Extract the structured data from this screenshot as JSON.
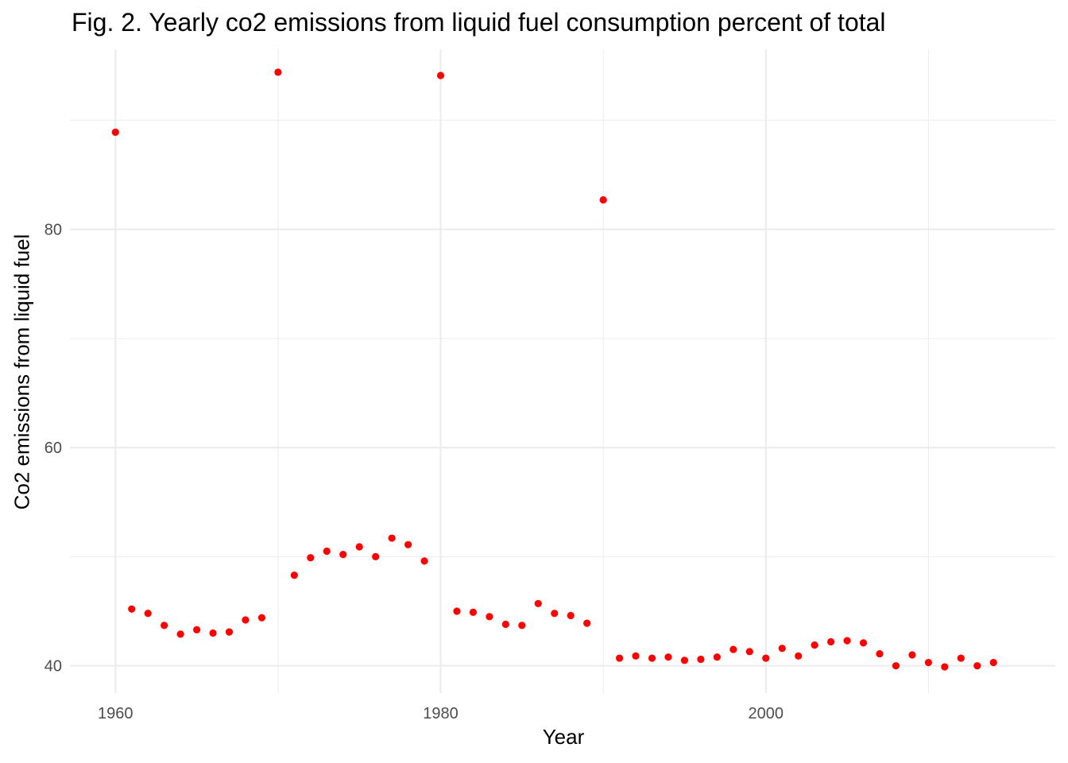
{
  "chart_data": {
    "type": "scatter",
    "title": "Fig. 2. Yearly co2 emissions from liquid fuel consumption percent of total",
    "xlabel": "Year",
    "ylabel": "Co2 emissions from liquid fuel",
    "xlim": [
      1957.2,
      2017.8
    ],
    "ylim": [
      37.5,
      96.5
    ],
    "x_ticks": [
      1960,
      1980,
      2000
    ],
    "x_minor": [
      1970,
      1990,
      2010
    ],
    "y_ticks": [
      40,
      60,
      80
    ],
    "y_minor": [
      50,
      70,
      90
    ],
    "grid": true,
    "point_color": "#ff0000",
    "grid_color": "#ebebeb",
    "points": [
      [
        1960,
        88.9
      ],
      [
        1961,
        45.2
      ],
      [
        1962,
        44.8
      ],
      [
        1963,
        43.7
      ],
      [
        1964,
        42.9
      ],
      [
        1965,
        43.3
      ],
      [
        1966,
        43.0
      ],
      [
        1967,
        43.1
      ],
      [
        1968,
        44.2
      ],
      [
        1969,
        44.4
      ],
      [
        1970,
        94.4
      ],
      [
        1971,
        48.3
      ],
      [
        1972,
        49.9
      ],
      [
        1973,
        50.5
      ],
      [
        1974,
        50.2
      ],
      [
        1975,
        50.9
      ],
      [
        1976,
        50.0
      ],
      [
        1977,
        51.7
      ],
      [
        1978,
        51.1
      ],
      [
        1979,
        49.6
      ],
      [
        1980,
        94.1
      ],
      [
        1981,
        45.0
      ],
      [
        1982,
        44.9
      ],
      [
        1983,
        44.5
      ],
      [
        1984,
        43.8
      ],
      [
        1985,
        43.7
      ],
      [
        1986,
        45.7
      ],
      [
        1987,
        44.8
      ],
      [
        1988,
        44.6
      ],
      [
        1989,
        43.9
      ],
      [
        1990,
        82.7
      ],
      [
        1991,
        40.7
      ],
      [
        1992,
        40.9
      ],
      [
        1993,
        40.7
      ],
      [
        1994,
        40.8
      ],
      [
        1995,
        40.5
      ],
      [
        1996,
        40.6
      ],
      [
        1997,
        40.8
      ],
      [
        1998,
        41.5
      ],
      [
        1999,
        41.3
      ],
      [
        2000,
        40.7
      ],
      [
        2001,
        41.6
      ],
      [
        2002,
        40.9
      ],
      [
        2003,
        41.9
      ],
      [
        2004,
        42.2
      ],
      [
        2005,
        42.3
      ],
      [
        2006,
        42.1
      ],
      [
        2007,
        41.1
      ],
      [
        2008,
        40.0
      ],
      [
        2009,
        41.0
      ],
      [
        2010,
        40.3
      ],
      [
        2011,
        39.9
      ],
      [
        2012,
        40.7
      ],
      [
        2013,
        40.0
      ],
      [
        2014,
        40.3
      ]
    ]
  }
}
